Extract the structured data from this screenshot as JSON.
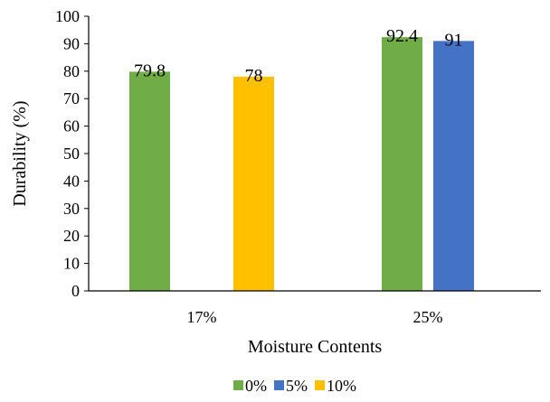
{
  "chart_data": {
    "type": "bar",
    "categories": [
      "17%",
      "25%"
    ],
    "series": [
      {
        "name": "0%",
        "values": [
          79.8,
          92.4
        ],
        "color": "#70AD47"
      },
      {
        "name": "5%",
        "values": [
          null,
          91
        ],
        "color": "#4472C4"
      },
      {
        "name": "10%",
        "values": [
          78,
          null
        ],
        "color": "#FFC000"
      }
    ],
    "title": "",
    "xlabel": "Moisture Contents",
    "ylabel": "Durability (%)",
    "ylim": [
      0,
      100
    ],
    "yticks": [
      0,
      10,
      20,
      30,
      40,
      50,
      60,
      70,
      80,
      90,
      100
    ],
    "grid": false,
    "legend": "bottom",
    "data_labels": true
  }
}
